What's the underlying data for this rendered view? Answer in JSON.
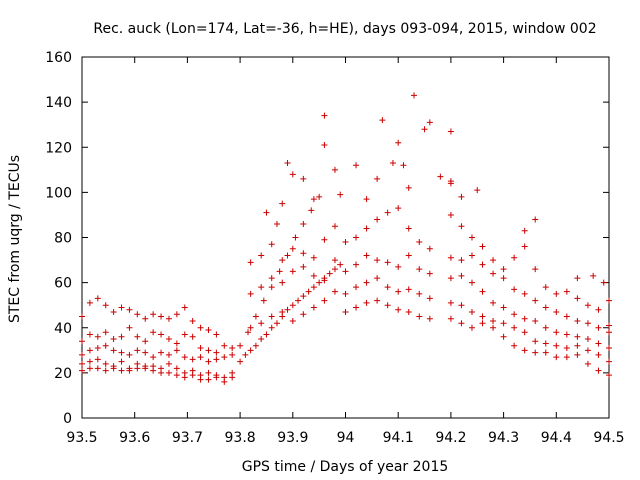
{
  "chart_data": {
    "type": "scatter",
    "title": "Rec. auck (Lon=174, Lat=-36, h=HE), days 093-094, 2015, window 002",
    "xlabel": "GPS time / Days of year 2015",
    "ylabel": "STEC from uqrg / TECUs",
    "xlim": [
      93.5,
      94.5
    ],
    "ylim": [
      0,
      160
    ],
    "xticks": [
      "93.5",
      "93.6",
      "93.7",
      "93.8",
      "93.9",
      "94",
      "94.1",
      "94.2",
      "94.3",
      "94.4",
      "94.5"
    ],
    "yticks": [
      "0",
      "20",
      "40",
      "60",
      "80",
      "100",
      "120",
      "140",
      "160"
    ],
    "grid": false,
    "marker": "plus",
    "color": "#cc0000",
    "series": [
      {
        "name": "STEC",
        "points": [
          [
            93.5,
            45
          ],
          [
            93.515,
            51
          ],
          [
            93.53,
            53
          ],
          [
            93.545,
            50
          ],
          [
            93.56,
            47
          ],
          [
            93.575,
            49
          ],
          [
            93.59,
            48
          ],
          [
            93.605,
            46
          ],
          [
            93.62,
            44
          ],
          [
            93.635,
            46
          ],
          [
            93.65,
            45
          ],
          [
            93.665,
            44
          ],
          [
            93.68,
            46
          ],
          [
            93.695,
            49
          ],
          [
            93.71,
            43
          ],
          [
            93.725,
            40
          ],
          [
            93.74,
            39
          ],
          [
            93.755,
            37
          ],
          [
            93.5,
            34
          ],
          [
            93.515,
            37
          ],
          [
            93.53,
            36
          ],
          [
            93.545,
            38
          ],
          [
            93.56,
            35
          ],
          [
            93.575,
            36
          ],
          [
            93.59,
            40
          ],
          [
            93.605,
            36
          ],
          [
            93.62,
            34
          ],
          [
            93.635,
            38
          ],
          [
            93.65,
            37
          ],
          [
            93.665,
            35
          ],
          [
            93.68,
            33
          ],
          [
            93.695,
            37
          ],
          [
            93.71,
            36
          ],
          [
            93.725,
            31
          ],
          [
            93.74,
            30
          ],
          [
            93.755,
            29
          ],
          [
            93.77,
            32
          ],
          [
            93.785,
            31
          ],
          [
            93.5,
            28
          ],
          [
            93.515,
            30
          ],
          [
            93.53,
            31
          ],
          [
            93.545,
            32
          ],
          [
            93.56,
            30
          ],
          [
            93.575,
            29
          ],
          [
            93.59,
            28
          ],
          [
            93.605,
            30
          ],
          [
            93.62,
            29
          ],
          [
            93.635,
            27
          ],
          [
            93.65,
            29
          ],
          [
            93.665,
            28
          ],
          [
            93.68,
            30
          ],
          [
            93.695,
            27
          ],
          [
            93.71,
            26
          ],
          [
            93.725,
            27
          ],
          [
            93.74,
            25
          ],
          [
            93.755,
            26
          ],
          [
            93.77,
            27
          ],
          [
            93.785,
            28
          ],
          [
            93.5,
            24
          ],
          [
            93.515,
            25
          ],
          [
            93.53,
            26
          ],
          [
            93.545,
            24
          ],
          [
            93.56,
            23
          ],
          [
            93.575,
            25
          ],
          [
            93.59,
            22
          ],
          [
            93.605,
            24
          ],
          [
            93.62,
            23
          ],
          [
            93.635,
            23
          ],
          [
            93.65,
            22
          ],
          [
            93.665,
            24
          ],
          [
            93.68,
            22
          ],
          [
            93.695,
            20
          ],
          [
            93.71,
            21
          ],
          [
            93.725,
            19
          ],
          [
            93.74,
            20
          ],
          [
            93.755,
            19
          ],
          [
            93.77,
            18
          ],
          [
            93.785,
            20
          ],
          [
            93.5,
            21
          ],
          [
            93.515,
            22
          ],
          [
            93.53,
            22
          ],
          [
            93.545,
            21
          ],
          [
            93.56,
            22
          ],
          [
            93.575,
            21
          ],
          [
            93.59,
            21
          ],
          [
            93.605,
            22
          ],
          [
            93.62,
            22
          ],
          [
            93.635,
            21
          ],
          [
            93.65,
            20
          ],
          [
            93.665,
            20
          ],
          [
            93.68,
            19
          ],
          [
            93.695,
            18
          ],
          [
            93.71,
            19
          ],
          [
            93.725,
            17
          ],
          [
            93.74,
            17
          ],
          [
            93.755,
            18
          ],
          [
            93.77,
            16
          ],
          [
            93.785,
            18
          ],
          [
            93.8,
            25
          ],
          [
            93.81,
            28
          ],
          [
            93.82,
            30
          ],
          [
            93.83,
            32
          ],
          [
            93.84,
            35
          ],
          [
            93.85,
            37
          ],
          [
            93.86,
            40
          ],
          [
            93.87,
            42
          ],
          [
            93.88,
            45
          ],
          [
            93.89,
            48
          ],
          [
            93.9,
            50
          ],
          [
            93.91,
            52
          ],
          [
            93.92,
            54
          ],
          [
            93.93,
            56
          ],
          [
            93.94,
            58
          ],
          [
            93.95,
            60
          ],
          [
            93.96,
            62
          ],
          [
            93.97,
            64
          ],
          [
            93.98,
            66
          ],
          [
            93.99,
            68
          ],
          [
            93.8,
            32
          ],
          [
            93.815,
            38
          ],
          [
            93.83,
            45
          ],
          [
            93.845,
            52
          ],
          [
            93.86,
            58
          ],
          [
            93.875,
            65
          ],
          [
            93.89,
            72
          ],
          [
            93.905,
            80
          ],
          [
            93.92,
            86
          ],
          [
            93.935,
            92
          ],
          [
            93.95,
            98
          ],
          [
            93.85,
            91
          ],
          [
            93.87,
            86
          ],
          [
            93.88,
            95
          ],
          [
            93.89,
            113
          ],
          [
            93.9,
            108
          ],
          [
            93.92,
            106
          ],
          [
            93.94,
            97
          ],
          [
            93.96,
            134
          ],
          [
            93.96,
            121
          ],
          [
            93.98,
            110
          ],
          [
            93.99,
            99
          ],
          [
            93.82,
            69
          ],
          [
            93.84,
            72
          ],
          [
            93.86,
            77
          ],
          [
            93.88,
            70
          ],
          [
            93.9,
            75
          ],
          [
            93.92,
            73
          ],
          [
            93.94,
            71
          ],
          [
            93.96,
            79
          ],
          [
            93.98,
            85
          ],
          [
            93.82,
            55
          ],
          [
            93.84,
            58
          ],
          [
            93.86,
            62
          ],
          [
            93.88,
            60
          ],
          [
            93.9,
            65
          ],
          [
            93.92,
            67
          ],
          [
            93.94,
            63
          ],
          [
            93.96,
            61
          ],
          [
            93.98,
            70
          ],
          [
            93.82,
            40
          ],
          [
            93.84,
            42
          ],
          [
            93.86,
            45
          ],
          [
            93.88,
            47
          ],
          [
            93.9,
            43
          ],
          [
            93.92,
            46
          ],
          [
            93.94,
            49
          ],
          [
            93.96,
            52
          ],
          [
            93.98,
            56
          ],
          [
            94.0,
            47
          ],
          [
            94.02,
            49
          ],
          [
            94.04,
            51
          ],
          [
            94.06,
            52
          ],
          [
            94.08,
            50
          ],
          [
            94.1,
            48
          ],
          [
            94.12,
            47
          ],
          [
            94.14,
            45
          ],
          [
            94.16,
            44
          ],
          [
            94.0,
            55
          ],
          [
            94.02,
            58
          ],
          [
            94.04,
            60
          ],
          [
            94.06,
            62
          ],
          [
            94.08,
            58
          ],
          [
            94.1,
            56
          ],
          [
            94.12,
            57
          ],
          [
            94.14,
            55
          ],
          [
            94.16,
            53
          ],
          [
            94.0,
            65
          ],
          [
            94.02,
            68
          ],
          [
            94.04,
            72
          ],
          [
            94.06,
            70
          ],
          [
            94.08,
            69
          ],
          [
            94.1,
            67
          ],
          [
            94.12,
            72
          ],
          [
            94.14,
            66
          ],
          [
            94.16,
            64
          ],
          [
            94.0,
            78
          ],
          [
            94.02,
            80
          ],
          [
            94.04,
            84
          ],
          [
            94.06,
            88
          ],
          [
            94.08,
            91
          ],
          [
            94.1,
            93
          ],
          [
            94.12,
            84
          ],
          [
            94.14,
            78
          ],
          [
            94.16,
            75
          ],
          [
            94.02,
            112
          ],
          [
            94.04,
            97
          ],
          [
            94.06,
            106
          ],
          [
            94.07,
            132
          ],
          [
            94.09,
            113
          ],
          [
            94.1,
            122
          ],
          [
            94.11,
            112
          ],
          [
            94.12,
            102
          ],
          [
            94.13,
            143
          ],
          [
            94.15,
            128
          ],
          [
            94.16,
            131
          ],
          [
            94.18,
            107
          ],
          [
            94.2,
            127
          ],
          [
            94.2,
            105
          ],
          [
            94.22,
            98
          ],
          [
            94.2,
            44
          ],
          [
            94.22,
            42
          ],
          [
            94.24,
            40
          ],
          [
            94.26,
            42
          ],
          [
            94.28,
            40
          ],
          [
            94.3,
            36
          ],
          [
            94.32,
            32
          ],
          [
            94.34,
            30
          ],
          [
            94.36,
            29
          ],
          [
            94.38,
            29
          ],
          [
            94.4,
            27
          ],
          [
            94.42,
            27
          ],
          [
            94.44,
            28
          ],
          [
            94.46,
            24
          ],
          [
            94.48,
            21
          ],
          [
            94.5,
            19
          ],
          [
            94.2,
            51
          ],
          [
            94.22,
            50
          ],
          [
            94.24,
            47
          ],
          [
            94.26,
            45
          ],
          [
            94.28,
            43
          ],
          [
            94.3,
            42
          ],
          [
            94.32,
            40
          ],
          [
            94.34,
            38
          ],
          [
            94.36,
            34
          ],
          [
            94.38,
            33
          ],
          [
            94.4,
            32
          ],
          [
            94.42,
            31
          ],
          [
            94.44,
            32
          ],
          [
            94.46,
            30
          ],
          [
            94.48,
            28
          ],
          [
            94.5,
            25
          ],
          [
            94.2,
            62
          ],
          [
            94.22,
            63
          ],
          [
            94.24,
            60
          ],
          [
            94.26,
            56
          ],
          [
            94.28,
            51
          ],
          [
            94.3,
            49
          ],
          [
            94.32,
            46
          ],
          [
            94.34,
            44
          ],
          [
            94.36,
            43
          ],
          [
            94.38,
            40
          ],
          [
            94.4,
            38
          ],
          [
            94.42,
            37
          ],
          [
            94.44,
            36
          ],
          [
            94.46,
            35
          ],
          [
            94.48,
            33
          ],
          [
            94.5,
            31
          ],
          [
            94.2,
            71
          ],
          [
            94.22,
            70
          ],
          [
            94.24,
            72
          ],
          [
            94.26,
            68
          ],
          [
            94.28,
            64
          ],
          [
            94.3,
            62
          ],
          [
            94.32,
            57
          ],
          [
            94.34,
            55
          ],
          [
            94.36,
            52
          ],
          [
            94.38,
            49
          ],
          [
            94.4,
            47
          ],
          [
            94.42,
            45
          ],
          [
            94.44,
            43
          ],
          [
            94.46,
            42
          ],
          [
            94.48,
            40
          ],
          [
            94.5,
            38
          ],
          [
            94.2,
            90
          ],
          [
            94.22,
            85
          ],
          [
            94.24,
            80
          ],
          [
            94.26,
            76
          ],
          [
            94.28,
            70
          ],
          [
            94.3,
            66
          ],
          [
            94.32,
            71
          ],
          [
            94.34,
            76
          ],
          [
            94.36,
            66
          ],
          [
            94.38,
            58
          ],
          [
            94.4,
            55
          ],
          [
            94.42,
            56
          ],
          [
            94.44,
            53
          ],
          [
            94.46,
            50
          ],
          [
            94.48,
            48
          ],
          [
            94.5,
            52
          ],
          [
            94.2,
            104
          ],
          [
            94.25,
            101
          ],
          [
            94.34,
            83
          ],
          [
            94.36,
            88
          ],
          [
            94.44,
            62
          ],
          [
            94.47,
            63
          ],
          [
            94.49,
            60
          ],
          [
            94.5,
            41
          ]
        ]
      }
    ]
  }
}
